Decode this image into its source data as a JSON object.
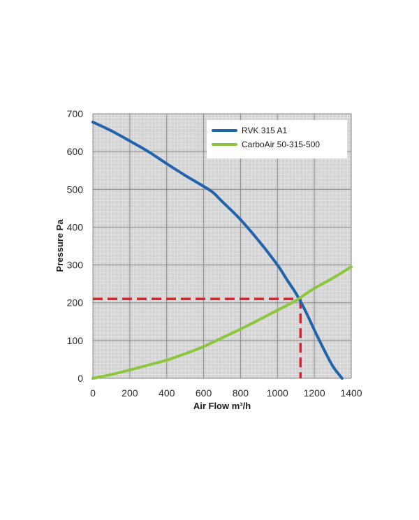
{
  "chart_data": {
    "type": "line",
    "xlabel": "Air Flow m³/h",
    "ylabel": "Pressure Pa",
    "xlim": [
      0,
      1400
    ],
    "ylim": [
      0,
      700
    ],
    "x_ticks": [
      "0",
      "200",
      "400",
      "600",
      "800",
      "1000",
      "1200",
      "1400"
    ],
    "y_ticks": [
      "0",
      "100",
      "200",
      "300",
      "400",
      "500",
      "600",
      "700"
    ],
    "grid": true,
    "legend_position": "top-right",
    "series": [
      {
        "name": "RVK 315 A1",
        "color": "#1f64ad",
        "points": [
          [
            0,
            678
          ],
          [
            100,
            655
          ],
          [
            200,
            628
          ],
          [
            300,
            600
          ],
          [
            400,
            568
          ],
          [
            500,
            537
          ],
          [
            600,
            508
          ],
          [
            650,
            492
          ],
          [
            700,
            468
          ],
          [
            800,
            420
          ],
          [
            900,
            363
          ],
          [
            1000,
            300
          ],
          [
            1050,
            262
          ],
          [
            1100,
            225
          ],
          [
            1150,
            180
          ],
          [
            1200,
            128
          ],
          [
            1250,
            78
          ],
          [
            1300,
            32
          ],
          [
            1350,
            0
          ]
        ]
      },
      {
        "name": "CarboAir 50-315-500",
        "color": "#8cc63f",
        "points": [
          [
            0,
            0
          ],
          [
            100,
            10
          ],
          [
            200,
            22
          ],
          [
            300,
            35
          ],
          [
            400,
            48
          ],
          [
            500,
            65
          ],
          [
            600,
            84
          ],
          [
            700,
            107
          ],
          [
            800,
            130
          ],
          [
            900,
            155
          ],
          [
            1000,
            180
          ],
          [
            1100,
            206
          ],
          [
            1200,
            238
          ],
          [
            1300,
            265
          ],
          [
            1400,
            295
          ]
        ]
      }
    ],
    "intersection": {
      "x": 1125,
      "y": 210,
      "color": "#e0202a",
      "style": "dashed"
    }
  }
}
